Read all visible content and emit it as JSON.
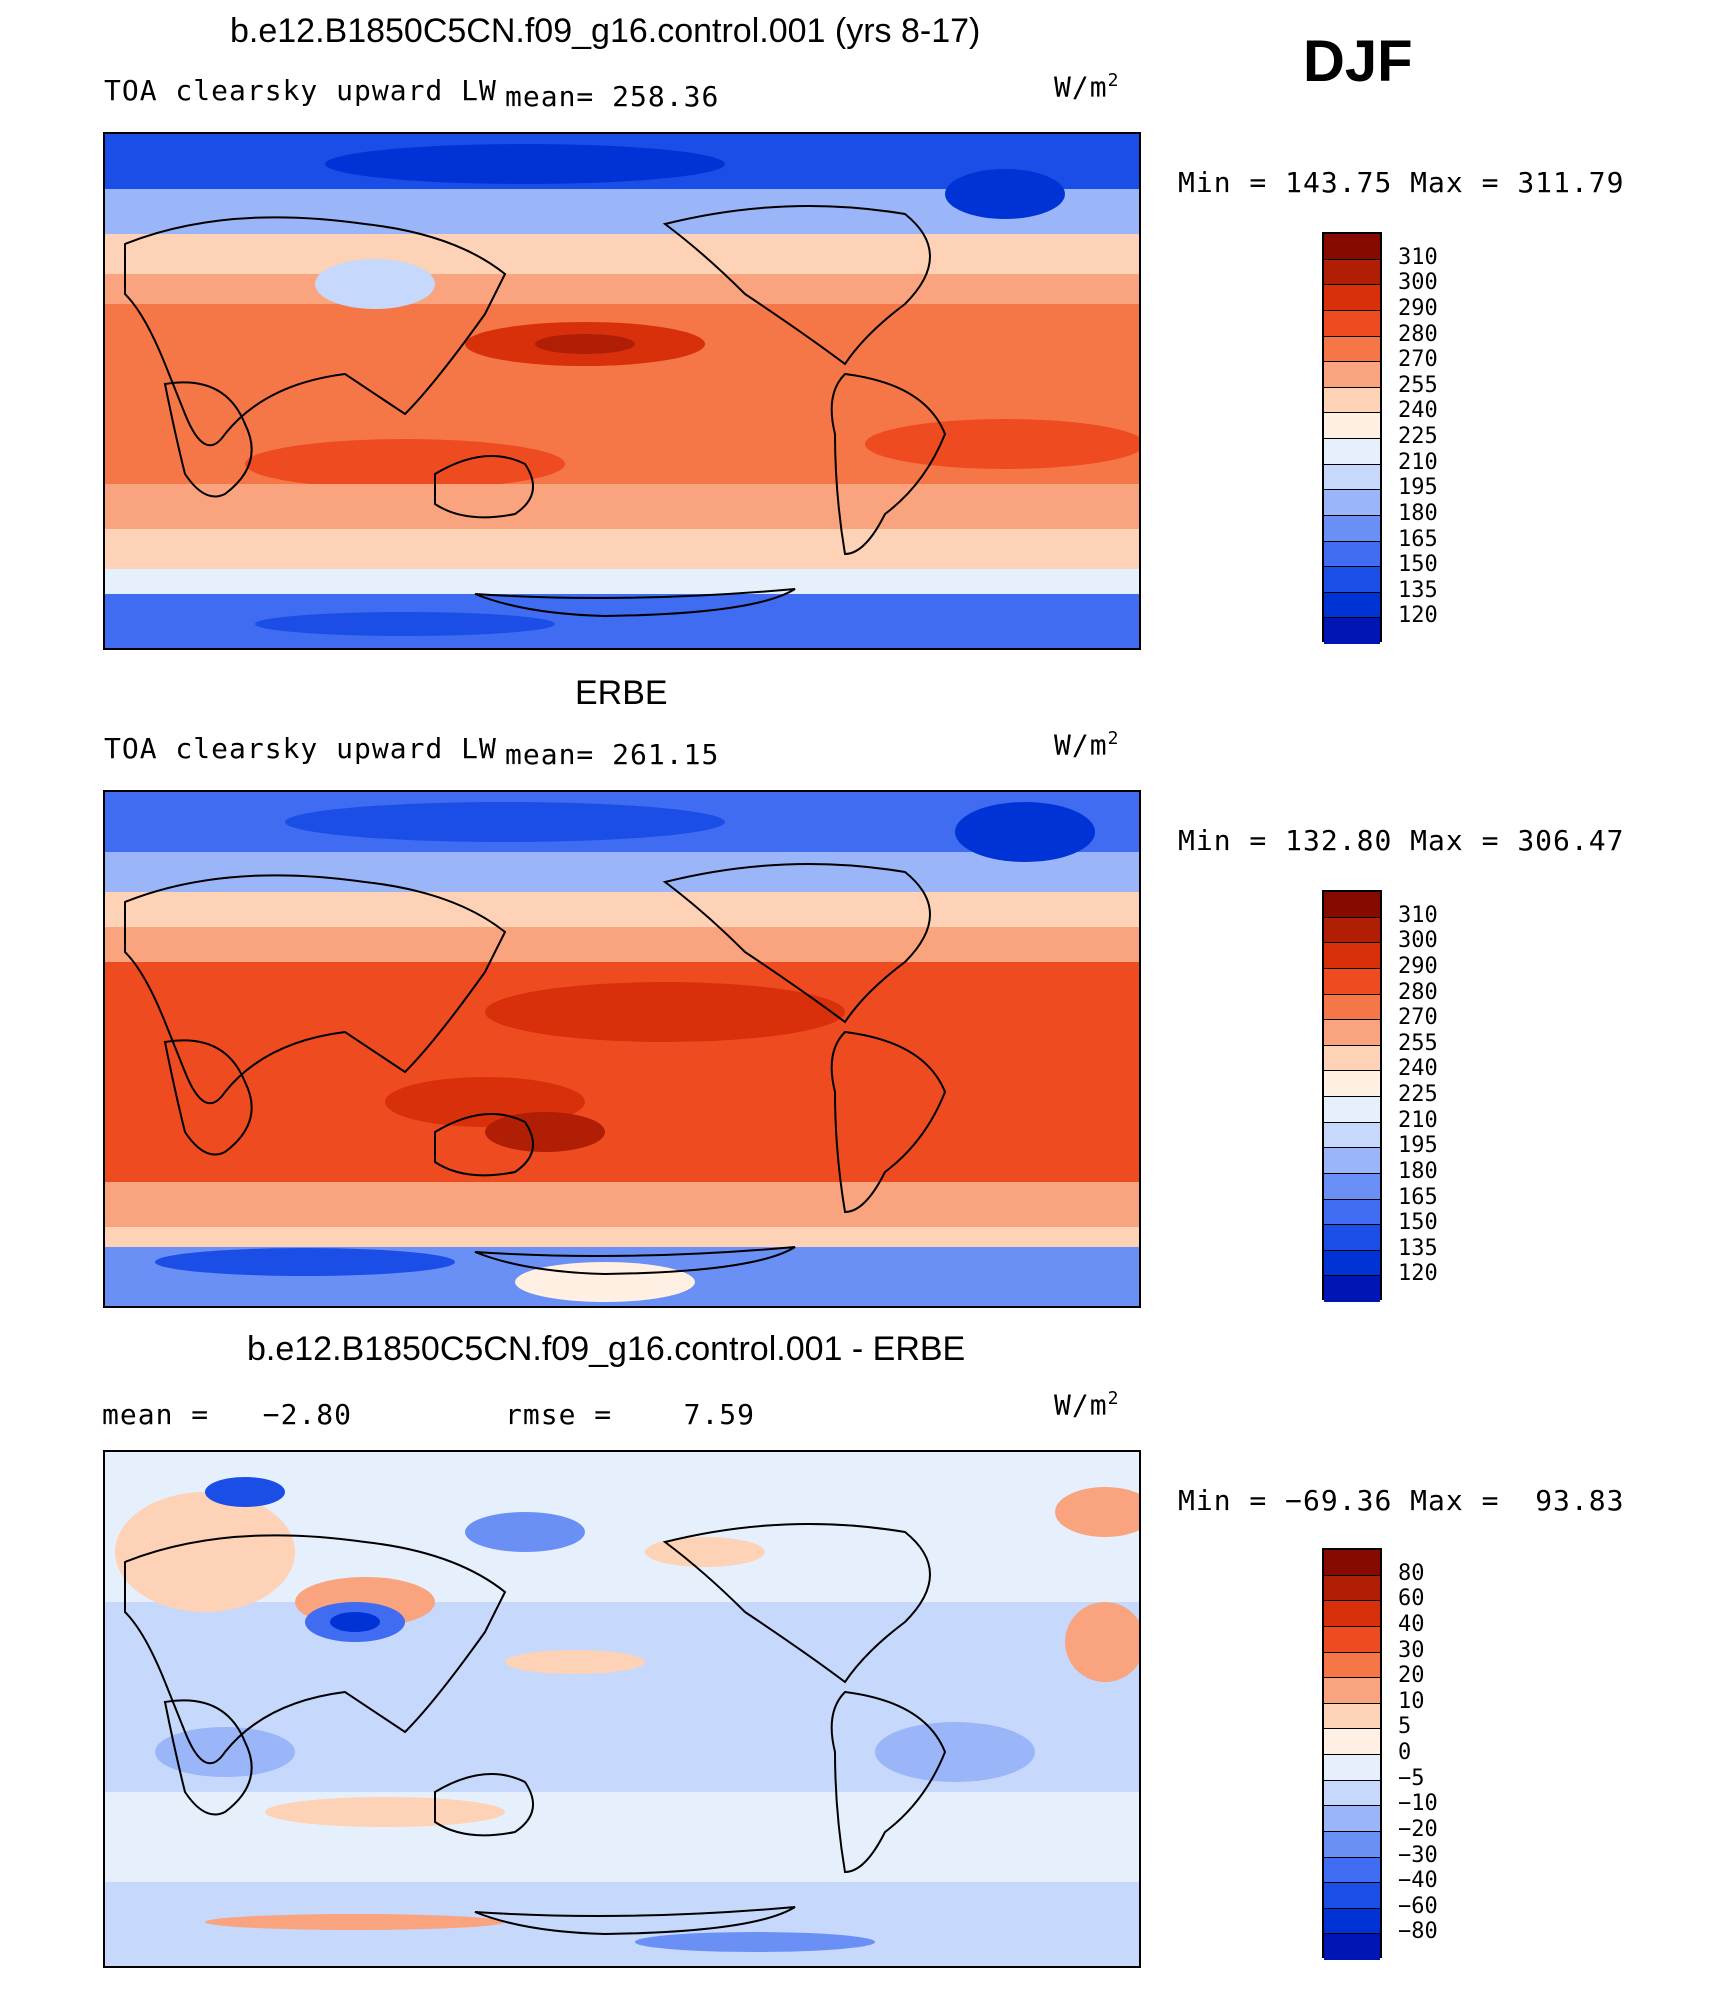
{
  "season": "DJF",
  "colors": {
    "warm_scale": [
      "#00007f",
      "#0016b4",
      "#0033d6",
      "#1a4ee6",
      "#3f6cf0",
      "#6a90f5",
      "#9ab5f8",
      "#c6d8fb",
      "#e6f0fc",
      "#fff0e3",
      "#fdd2b6",
      "#f9a47e",
      "#f57747",
      "#ee4c20",
      "#d9300c",
      "#b01e05",
      "#860a00"
    ],
    "coast": "#000000"
  },
  "panels": [
    {
      "title": "b.e12.B1850C5CN.f09_g16.control.001 (yrs 8-17)",
      "left_label": "TOA clearsky upward LW",
      "mean_label": "mean=",
      "mean_value": "258.36",
      "units": "W/m",
      "units_exp": "2",
      "min_label": "Min",
      "min_value": "143.75",
      "max_label": "Max",
      "max_value": "311.79",
      "levels": [
        "310",
        "300",
        "290",
        "280",
        "270",
        "255",
        "240",
        "225",
        "210",
        "195",
        "180",
        "165",
        "150",
        "135",
        "120"
      ]
    },
    {
      "title": "ERBE",
      "left_label": "TOA clearsky upward LW",
      "mean_label": "mean=",
      "mean_value": "261.15",
      "units": "W/m",
      "units_exp": "2",
      "min_label": "Min",
      "min_value": "132.80",
      "max_label": "Max",
      "max_value": "306.47",
      "levels": [
        "310",
        "300",
        "290",
        "280",
        "270",
        "255",
        "240",
        "225",
        "210",
        "195",
        "180",
        "165",
        "150",
        "135",
        "120"
      ]
    },
    {
      "title": "b.e12.B1850C5CN.f09_g16.control.001 - ERBE",
      "mean_label": "mean =",
      "mean_value": "−2.80",
      "rmse_label": "rmse =",
      "rmse_value": "7.59",
      "units": "W/m",
      "units_exp": "2",
      "min_label": "Min",
      "min_value": "−69.36",
      "max_label": "Max",
      "max_value": "93.83",
      "levels": [
        "80",
        "60",
        "40",
        "30",
        "20",
        "10",
        "5",
        "0",
        "−5",
        "−10",
        "−20",
        "−30",
        "−40",
        "−60",
        "−80"
      ]
    }
  ]
}
